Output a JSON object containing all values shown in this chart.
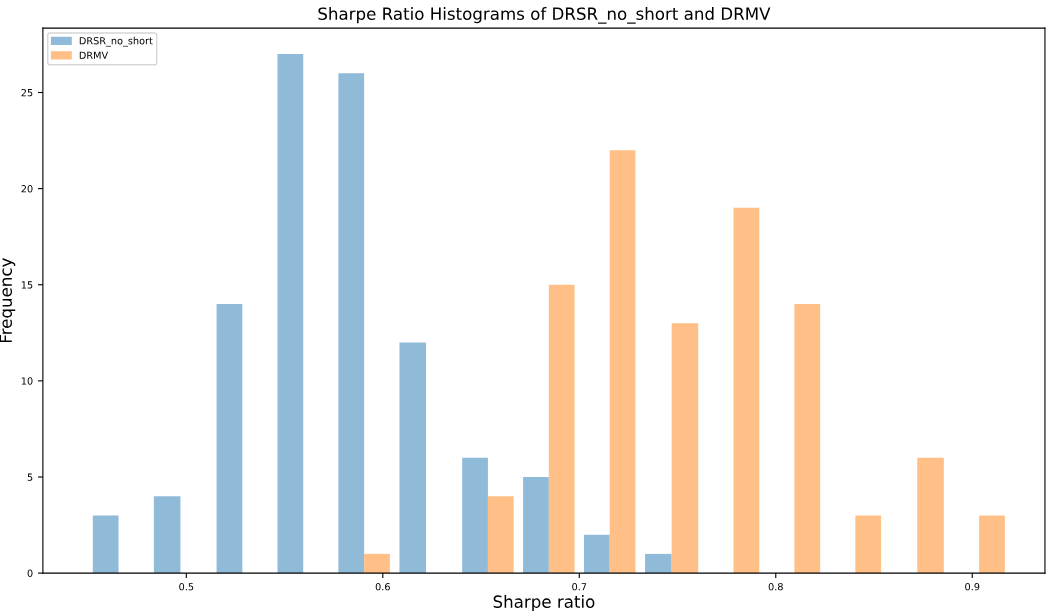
{
  "chart_data": {
    "type": "histogram",
    "title": "Sharpe Ratio Histograms of DRSR_no_short and DRMV",
    "xlabel": "Sharpe ratio",
    "ylabel": "Frequency",
    "bins": [
      0.45,
      0.481,
      0.513,
      0.544,
      0.575,
      0.606,
      0.638,
      0.669,
      0.7,
      0.731,
      0.763,
      0.794,
      0.825,
      0.856,
      0.888,
      0.919
    ],
    "series": [
      {
        "name": "DRSR_no_short",
        "color": "#8fbbd9",
        "values": [
          3,
          4,
          14,
          27,
          26,
          12,
          6,
          5,
          2,
          1,
          0,
          0,
          0,
          0,
          0
        ]
      },
      {
        "name": "DRMV",
        "color": "#ffbf86",
        "values": [
          0,
          0,
          0,
          0,
          1,
          0,
          4,
          15,
          22,
          13,
          19,
          14,
          3,
          6,
          3
        ]
      }
    ],
    "xlim": [
      0.427,
      0.937
    ],
    "xticks": [
      0.5,
      0.6,
      0.7,
      0.8,
      0.9
    ],
    "ylim": [
      0,
      28.35
    ],
    "yticks": [
      0,
      5,
      10,
      15,
      20,
      25
    ],
    "grid": false,
    "legend": "top left"
  }
}
